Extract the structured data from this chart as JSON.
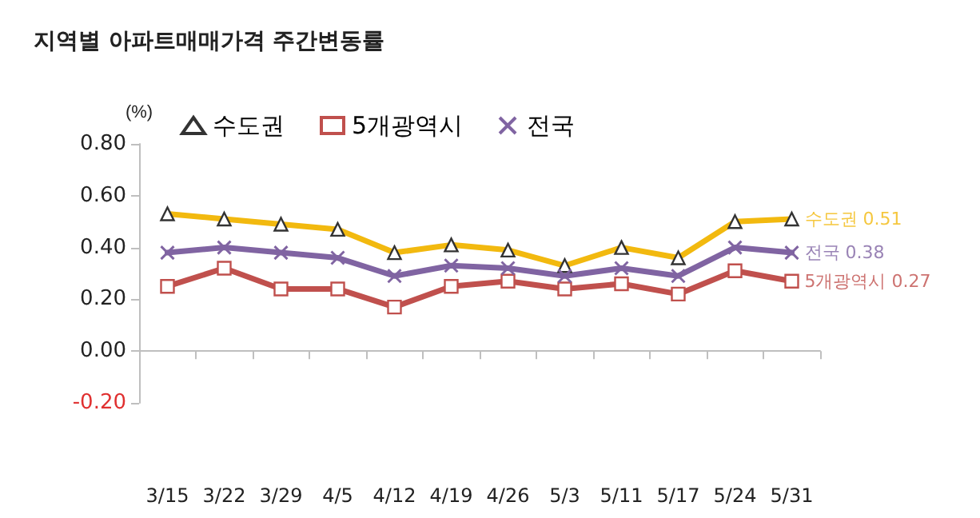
{
  "chart_data": {
    "type": "line",
    "title": "지역별 아파트매매가격 주간변동률",
    "ylabel": "(%)",
    "categories": [
      "3/15",
      "3/22",
      "3/29",
      "4/5",
      "4/12",
      "4/19",
      "4/26",
      "5/3",
      "5/11",
      "5/17",
      "5/24",
      "5/31"
    ],
    "series": [
      {
        "name": "수도권",
        "color": "#f2b90f",
        "marker": "triangle",
        "values": [
          0.53,
          0.51,
          0.49,
          0.47,
          0.38,
          0.41,
          0.39,
          0.33,
          0.4,
          0.36,
          0.5,
          0.51
        ]
      },
      {
        "name": "5개광역시",
        "color": "#c0504d",
        "marker": "square",
        "values": [
          0.25,
          0.32,
          0.24,
          0.24,
          0.17,
          0.25,
          0.27,
          0.24,
          0.26,
          0.22,
          0.31,
          0.27
        ]
      },
      {
        "name": "전국",
        "color": "#8064a2",
        "marker": "cross",
        "values": [
          0.38,
          0.4,
          0.38,
          0.36,
          0.29,
          0.33,
          0.32,
          0.29,
          0.32,
          0.29,
          0.4,
          0.38
        ]
      }
    ],
    "annotations": [
      {
        "text": "수도권 0.51",
        "x": "5/31",
        "y": 0.51
      },
      {
        "text": "5개광역시 0.27",
        "x": "5/31",
        "y": 0.27
      },
      {
        "text": "전국 0.38",
        "x": "5/31",
        "y": 0.38
      }
    ],
    "ylim": [
      -0.2,
      0.8
    ],
    "yticks": [
      {
        "value": -0.2,
        "label": "-0.20"
      },
      {
        "value": 0,
        "label": "0.00"
      },
      {
        "value": 0.2,
        "label": "0.20"
      },
      {
        "value": 0.4,
        "label": "0.40"
      },
      {
        "value": 0.6,
        "label": "0.60"
      },
      {
        "value": 0.8,
        "label": "0.80"
      }
    ],
    "legend": "top"
  }
}
